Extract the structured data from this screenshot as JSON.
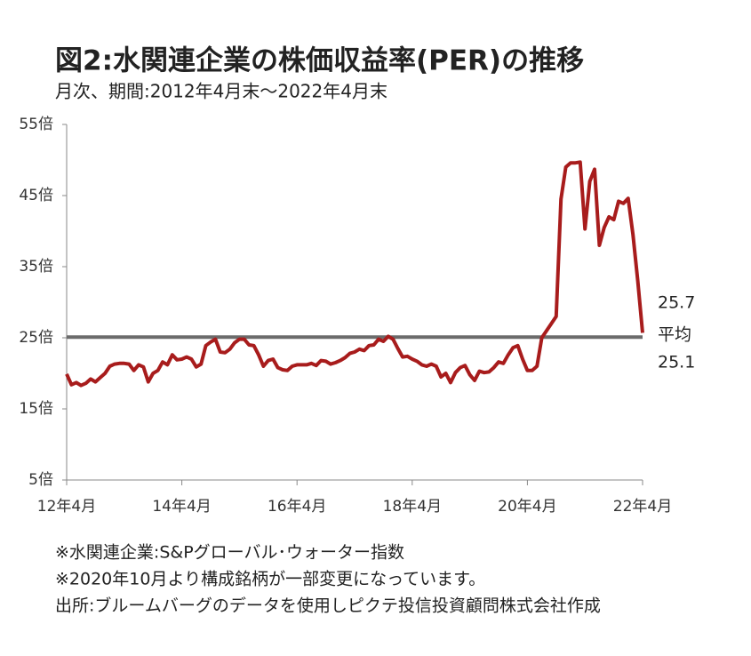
{
  "chart_data": {
    "type": "line",
    "title": "図2:水関連企業の株価収益率(PER)の推移",
    "subtitle": "月次、期間:2012年4月末～2022年4月末",
    "categories": [
      "12年4月",
      null,
      null,
      null,
      null,
      null,
      null,
      null,
      null,
      null,
      null,
      null,
      null,
      null,
      null,
      null,
      null,
      null,
      null,
      null,
      null,
      null,
      null,
      null,
      "14年4月",
      null,
      null,
      null,
      null,
      null,
      null,
      null,
      null,
      null,
      null,
      null,
      null,
      null,
      null,
      null,
      null,
      null,
      null,
      null,
      null,
      null,
      null,
      null,
      "16年4月",
      null,
      null,
      null,
      null,
      null,
      null,
      null,
      null,
      null,
      null,
      null,
      null,
      null,
      null,
      null,
      null,
      null,
      null,
      null,
      null,
      null,
      null,
      null,
      "18年4月",
      null,
      null,
      null,
      null,
      null,
      null,
      null,
      null,
      null,
      null,
      null,
      null,
      null,
      null,
      null,
      null,
      null,
      null,
      null,
      null,
      null,
      null,
      null,
      "20年4月",
      null,
      null,
      null,
      null,
      null,
      null,
      null,
      null,
      null,
      null,
      null,
      null,
      null,
      null,
      null,
      null,
      null,
      null,
      null,
      null,
      null,
      null,
      null,
      "22年4月"
    ],
    "series": [
      {
        "color": "#a81c1c",
        "values": [
          19.9,
          18.4,
          18.7,
          18.3,
          18.6,
          19.2,
          18.8,
          19.4,
          20.0,
          21.0,
          21.3,
          21.4,
          21.4,
          21.3,
          20.4,
          21.2,
          20.9,
          18.8,
          20.0,
          20.4,
          21.6,
          21.2,
          22.6,
          21.9,
          22.0,
          22.3,
          22.0,
          20.9,
          21.3,
          23.9,
          24.4,
          24.8,
          23.0,
          22.9,
          23.4,
          24.3,
          24.8,
          24.8,
          24.0,
          23.9,
          22.6,
          21.0,
          21.8,
          22.0,
          20.8,
          20.5,
          20.4,
          21.0,
          21.2,
          21.2,
          21.2,
          21.4,
          21.1,
          21.8,
          21.7,
          21.3,
          21.5,
          21.8,
          22.2,
          22.8,
          23.0,
          23.4,
          23.2,
          23.9,
          24.0,
          24.8,
          24.5,
          25.2,
          24.8,
          23.5,
          22.3,
          22.4,
          22.0,
          21.7,
          21.2,
          21.0,
          21.3,
          21.0,
          19.5,
          20.0,
          18.7,
          20.1,
          20.8,
          21.1,
          19.8,
          19.0,
          20.3,
          20.1,
          20.2,
          20.8,
          21.6,
          21.4,
          22.6,
          23.6,
          23.9,
          22.0,
          20.4,
          20.4,
          21.0,
          25.0,
          26.0,
          27.0,
          28.0,
          44.5,
          49.0,
          49.6,
          49.6,
          49.7,
          40.3,
          47.0,
          48.7,
          38.0,
          40.5,
          42.0,
          41.6,
          44.2,
          43.9,
          44.6,
          39.5,
          33.0,
          25.7
        ]
      }
    ],
    "average": {
      "label": "平均",
      "value": 25.1,
      "color": "#6b6b6b"
    },
    "ylim": [
      5,
      55
    ],
    "yticks": [
      {
        "value": 5,
        "label": "5倍"
      },
      {
        "value": 15,
        "label": "15倍"
      },
      {
        "value": 25,
        "label": "25倍"
      },
      {
        "value": 35,
        "label": "35倍"
      },
      {
        "value": 45,
        "label": "45倍"
      },
      {
        "value": 55,
        "label": "55倍"
      }
    ],
    "notes": [
      "※水関連企業:S&Pグローバル･ウォーター指数",
      "※2020年10月より構成銘柄が一部変更になっています。",
      "出所:ブルームバーグのデータを使用しピクテ投信投資顧問株式会社作成"
    ]
  }
}
